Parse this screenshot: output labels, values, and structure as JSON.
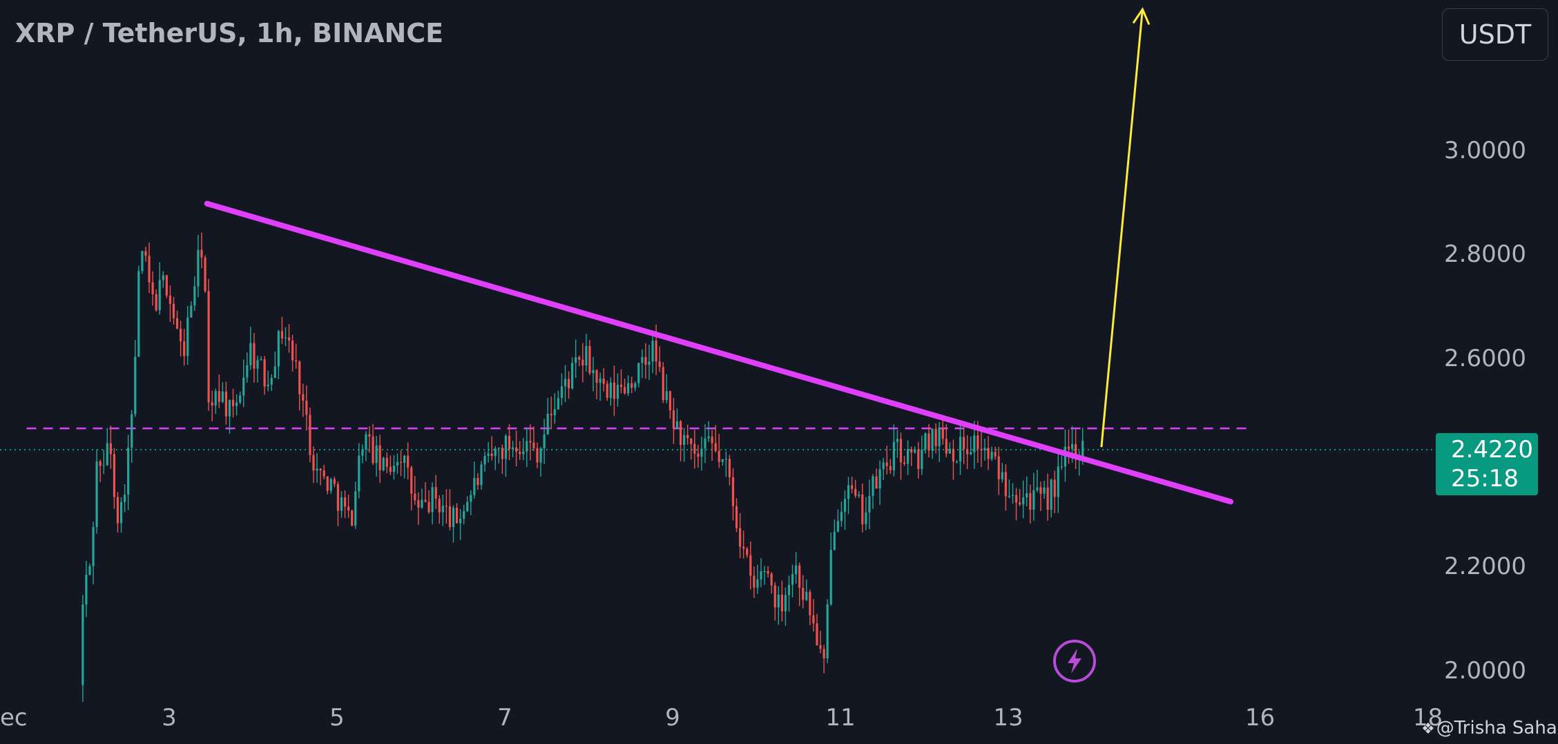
{
  "header": {
    "title": "XRP / TetherUS, 1h, BINANCE",
    "currency": "USDT"
  },
  "price_badge": {
    "price": "2.4220",
    "countdown": "25:18",
    "color": "#089981"
  },
  "watermark": {
    "text": "@Trisha Saha",
    "icon": "tradingview-diamond-icon"
  },
  "chart_data": {
    "type": "candlestick",
    "title": "XRP / TetherUS, 1h, BINANCE",
    "y_axis": {
      "ticks": [
        "3.0000",
        "2.8000",
        "2.6000",
        "2.2000",
        "2.0000"
      ],
      "tick_values": [
        3.0,
        2.8,
        2.6,
        2.2,
        2.0
      ],
      "range": [
        1.97,
        3.28
      ]
    },
    "x_axis": {
      "ticks": [
        "ec",
        "3",
        "5",
        "7",
        "9",
        "11",
        "13",
        "16",
        "18"
      ],
      "tick_days": [
        1,
        3,
        5,
        7,
        9,
        11,
        13,
        16,
        18
      ],
      "range_days": [
        1.0,
        18.0
      ]
    },
    "current_price": 2.422,
    "colors": {
      "up": "#26a69a",
      "down": "#ef5350",
      "trendline": "#e040fb",
      "resistance": "#e040fb",
      "arrow": "#ffeb3b",
      "price_line": "#089981",
      "background": "#131722"
    },
    "price_path": [
      [
        1.97,
        1.97
      ],
      [
        2.02,
        2.15
      ],
      [
        2.1,
        2.2
      ],
      [
        2.2,
        2.44
      ],
      [
        2.25,
        2.35
      ],
      [
        2.3,
        2.45
      ],
      [
        2.45,
        2.28
      ],
      [
        2.6,
        2.48
      ],
      [
        2.7,
        2.82
      ],
      [
        2.85,
        2.7
      ],
      [
        3.0,
        2.75
      ],
      [
        3.2,
        2.6
      ],
      [
        3.35,
        2.75
      ],
      [
        3.45,
        2.83
      ],
      [
        3.52,
        2.45
      ],
      [
        3.6,
        2.55
      ],
      [
        3.8,
        2.48
      ],
      [
        4.0,
        2.62
      ],
      [
        4.2,
        2.55
      ],
      [
        4.4,
        2.66
      ],
      [
        4.6,
        2.55
      ],
      [
        4.7,
        2.45
      ],
      [
        4.8,
        2.38
      ],
      [
        5.0,
        2.35
      ],
      [
        5.2,
        2.28
      ],
      [
        5.35,
        2.45
      ],
      [
        5.6,
        2.38
      ],
      [
        5.8,
        2.42
      ],
      [
        6.0,
        2.3
      ],
      [
        6.2,
        2.33
      ],
      [
        6.45,
        2.28
      ],
      [
        6.7,
        2.36
      ],
      [
        6.95,
        2.42
      ],
      [
        7.2,
        2.44
      ],
      [
        7.45,
        2.42
      ],
      [
        7.6,
        2.5
      ],
      [
        7.8,
        2.56
      ],
      [
        8.0,
        2.6
      ],
      [
        8.25,
        2.52
      ],
      [
        8.5,
        2.55
      ],
      [
        8.7,
        2.58
      ],
      [
        8.8,
        2.62
      ],
      [
        8.95,
        2.52
      ],
      [
        9.1,
        2.46
      ],
      [
        9.3,
        2.4
      ],
      [
        9.5,
        2.43
      ],
      [
        9.7,
        2.38
      ],
      [
        9.85,
        2.25
      ],
      [
        10.0,
        2.15
      ],
      [
        10.15,
        2.2
      ],
      [
        10.3,
        2.12
      ],
      [
        10.5,
        2.2
      ],
      [
        10.7,
        2.1
      ],
      [
        10.85,
        2.0
      ],
      [
        10.95,
        2.28
      ],
      [
        11.1,
        2.35
      ],
      [
        11.3,
        2.3
      ],
      [
        11.5,
        2.37
      ],
      [
        11.7,
        2.42
      ],
      [
        11.95,
        2.4
      ],
      [
        12.15,
        2.46
      ],
      [
        12.4,
        2.42
      ],
      [
        12.65,
        2.44
      ],
      [
        12.85,
        2.4
      ],
      [
        13.0,
        2.36
      ],
      [
        13.2,
        2.34
      ],
      [
        13.45,
        2.32
      ],
      [
        13.6,
        2.35
      ],
      [
        13.75,
        2.42
      ],
      [
        13.9,
        2.43
      ]
    ],
    "annotations": {
      "trendline": {
        "start": [
          3.45,
          2.895
        ],
        "end": [
          15.65,
          2.322
        ]
      },
      "resistance_level": {
        "price": 2.463,
        "from_day": 1.3,
        "to_day": 15.85,
        "style": "dashed"
      },
      "current_price_line": {
        "price": 2.422,
        "style": "dotted"
      },
      "arrow": {
        "start": [
          14.11,
          2.427
        ],
        "end": [
          14.6,
          3.27
        ]
      },
      "icon": "lightning-bolt-icon"
    }
  }
}
